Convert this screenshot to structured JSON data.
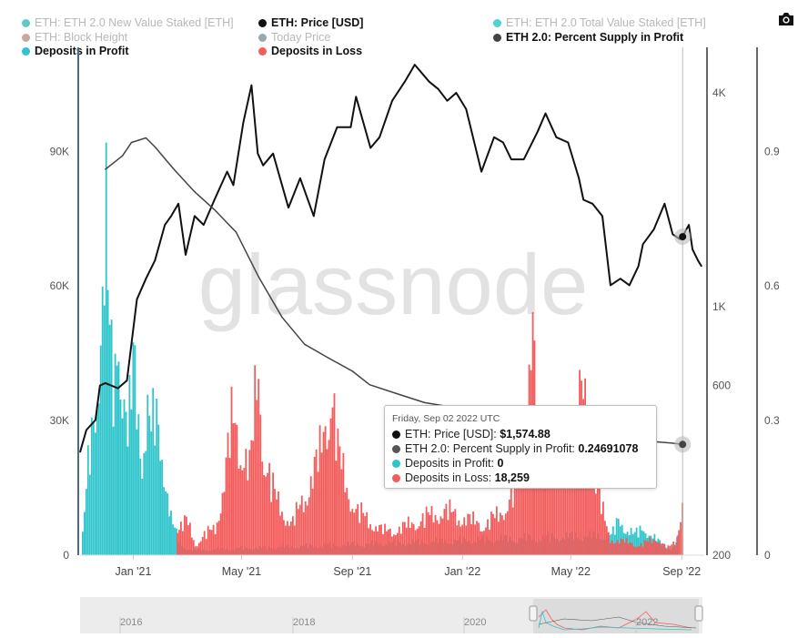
{
  "legend": {
    "items": [
      {
        "label": "ETH: ETH 2.0 New Value Staked [ETH]",
        "color": "#5fc9c9",
        "muted": true
      },
      {
        "label": "ETH: Price [USD]",
        "color": "#111111",
        "muted": false
      },
      {
        "label": "ETH: ETH 2.0 Total Value Staked [ETH]",
        "color": "#4fd2d2",
        "muted": true
      },
      {
        "label": "ETH: Block Height",
        "color": "#c9a8a0",
        "muted": true
      },
      {
        "label": "Today Price",
        "color": "#9aa8b0",
        "muted": true
      },
      {
        "label": "ETH 2.0: Percent Supply in Profit",
        "color": "#444444",
        "muted": false
      },
      {
        "label": "Deposits in Profit",
        "color": "#2dc5cb",
        "muted": false
      },
      {
        "label": "Deposits in Loss",
        "color": "#f45b5b",
        "muted": false
      }
    ]
  },
  "colors": {
    "profit": "#2dc5cb",
    "loss": "#f45b5b",
    "price": "#111111",
    "supply": "#444444",
    "axis_blue": "#4a6a8a",
    "axis_dark": "#333333"
  },
  "icons": {
    "camera": "camera-icon"
  },
  "watermark": "glassnode",
  "tooltip": {
    "date": "Friday, Sep 02 2022 UTC",
    "rows": [
      {
        "label": "ETH: Price [USD]:",
        "value": "$1,574.88",
        "color": "#111111"
      },
      {
        "label": "ETH 2.0: Percent Supply in Profit:",
        "value": "0.24691078",
        "color": "#555555"
      },
      {
        "label": "Deposits in Profit:",
        "value": "0",
        "color": "#2dc5cb"
      },
      {
        "label": "Deposits in Loss:",
        "value": "18,259",
        "color": "#f45b5b"
      }
    ]
  },
  "navigator": {
    "labels": [
      "2016",
      "2018",
      "2020",
      "2022"
    ]
  },
  "chart_data": {
    "type": "bar",
    "x_ticks": [
      "Jan '21",
      "May '21",
      "Sep '21",
      "Jan '22",
      "May '22",
      "Sep '22"
    ],
    "y_left": {
      "ticks": [
        "0",
        "30K",
        "60K",
        "90K"
      ],
      "range": [
        0,
        114000
      ]
    },
    "y_price": {
      "scale": "log",
      "ticks": [
        "200",
        "600",
        "1K",
        "4K"
      ],
      "range": [
        200,
        5500
      ]
    },
    "y_right": {
      "ticks": [
        "0",
        "0.3",
        "0.6",
        "0.9"
      ],
      "range": [
        0,
        1.14
      ]
    },
    "x_range": [
      "2020-11-03",
      "2022-09-26"
    ],
    "series": [
      {
        "name": "Deposits in Profit",
        "type": "bar",
        "color": "#2dc5cb",
        "points": [
          [
            "2020-11-05",
            6000
          ],
          [
            "2020-11-12",
            28000
          ],
          [
            "2020-11-20",
            45000
          ],
          [
            "2020-11-25",
            72000
          ],
          [
            "2020-12-01",
            98000
          ],
          [
            "2020-12-05",
            60000
          ],
          [
            "2020-12-10",
            48000
          ],
          [
            "2020-12-15",
            70000
          ],
          [
            "2020-12-20",
            50000
          ],
          [
            "2020-12-25",
            35000
          ],
          [
            "2021-01-01",
            56000
          ],
          [
            "2021-01-05",
            42000
          ],
          [
            "2021-01-10",
            30000
          ],
          [
            "2021-01-15",
            45000
          ],
          [
            "2021-01-20",
            36000
          ],
          [
            "2021-01-25",
            40000
          ],
          [
            "2021-02-01",
            30000
          ],
          [
            "2021-02-06",
            22000
          ],
          [
            "2021-02-10",
            12000
          ],
          [
            "2021-02-14",
            8000
          ],
          [
            "2021-02-22",
            3000
          ],
          [
            "2021-03-06",
            1500
          ],
          [
            "2022-06-15",
            6000
          ],
          [
            "2022-06-22",
            10000
          ],
          [
            "2022-07-01",
            8000
          ],
          [
            "2022-07-10",
            6000
          ],
          [
            "2022-07-20",
            8000
          ],
          [
            "2022-08-01",
            5000
          ],
          [
            "2022-08-10",
            3000
          ],
          [
            "2022-08-20",
            2000
          ],
          [
            "2022-08-28",
            5000
          ]
        ]
      },
      {
        "name": "Deposits in Loss",
        "type": "bar",
        "color": "#f45b5b",
        "points": [
          [
            "2021-02-18",
            8000
          ],
          [
            "2021-03-01",
            10000
          ],
          [
            "2021-03-10",
            3000
          ],
          [
            "2021-03-20",
            6000
          ],
          [
            "2021-04-01",
            8000
          ],
          [
            "2021-04-10",
            20000
          ],
          [
            "2021-04-20",
            40000
          ],
          [
            "2021-05-01",
            32000
          ],
          [
            "2021-05-10",
            25000
          ],
          [
            "2021-05-18",
            55000
          ],
          [
            "2021-05-25",
            30000
          ],
          [
            "2021-06-05",
            18000
          ],
          [
            "2021-06-15",
            13000
          ],
          [
            "2021-06-25",
            9000
          ],
          [
            "2021-07-05",
            15000
          ],
          [
            "2021-07-15",
            22000
          ],
          [
            "2021-07-25",
            28000
          ],
          [
            "2021-08-01",
            38000
          ],
          [
            "2021-08-08",
            52000
          ],
          [
            "2021-08-15",
            30000
          ],
          [
            "2021-08-25",
            20000
          ],
          [
            "2021-09-05",
            13000
          ],
          [
            "2021-09-20",
            10000
          ],
          [
            "2021-10-05",
            7000
          ],
          [
            "2021-10-25",
            8000
          ],
          [
            "2021-11-10",
            10000
          ],
          [
            "2021-11-28",
            12000
          ],
          [
            "2021-12-10",
            13000
          ],
          [
            "2021-12-25",
            12000
          ],
          [
            "2022-01-10",
            10000
          ],
          [
            "2022-01-25",
            9000
          ],
          [
            "2022-02-10",
            12000
          ],
          [
            "2022-02-25",
            18000
          ],
          [
            "2022-03-05",
            26000
          ],
          [
            "2022-03-12",
            48000
          ],
          [
            "2022-03-18",
            70000
          ],
          [
            "2022-03-25",
            32000
          ],
          [
            "2022-04-05",
            36000
          ],
          [
            "2022-04-15",
            24000
          ],
          [
            "2022-04-25",
            30000
          ],
          [
            "2022-05-05",
            32000
          ],
          [
            "2022-05-12",
            47000
          ],
          [
            "2022-05-20",
            38000
          ],
          [
            "2022-05-28",
            22000
          ],
          [
            "2022-06-05",
            12000
          ],
          [
            "2022-06-12",
            5000
          ],
          [
            "2022-07-15",
            3000
          ],
          [
            "2022-08-05",
            5000
          ],
          [
            "2022-08-15",
            2000
          ],
          [
            "2022-08-25",
            4000
          ],
          [
            "2022-09-02",
            18259
          ]
        ]
      },
      {
        "name": "ETH: Price [USD]",
        "type": "line",
        "axis": "price",
        "color": "#111111",
        "points": [
          [
            "2020-11-03",
            390
          ],
          [
            "2020-11-10",
            450
          ],
          [
            "2020-11-20",
            480
          ],
          [
            "2020-11-25",
            600
          ],
          [
            "2020-12-01",
            610
          ],
          [
            "2020-12-15",
            590
          ],
          [
            "2020-12-25",
            620
          ],
          [
            "2021-01-05",
            1050
          ],
          [
            "2021-01-15",
            1200
          ],
          [
            "2021-01-25",
            1350
          ],
          [
            "2021-02-05",
            1700
          ],
          [
            "2021-02-12",
            1800
          ],
          [
            "2021-02-20",
            1950
          ],
          [
            "2021-02-28",
            1400
          ],
          [
            "2021-03-10",
            1800
          ],
          [
            "2021-03-20",
            1700
          ],
          [
            "2021-04-01",
            2000
          ],
          [
            "2021-04-15",
            2400
          ],
          [
            "2021-04-22",
            2200
          ],
          [
            "2021-05-03",
            3300
          ],
          [
            "2021-05-12",
            4200
          ],
          [
            "2021-05-19",
            2700
          ],
          [
            "2021-05-25",
            2500
          ],
          [
            "2021-06-05",
            2700
          ],
          [
            "2021-06-22",
            1900
          ],
          [
            "2021-07-05",
            2300
          ],
          [
            "2021-07-20",
            1800
          ],
          [
            "2021-08-01",
            2600
          ],
          [
            "2021-08-15",
            3200
          ],
          [
            "2021-08-30",
            3200
          ],
          [
            "2021-09-05",
            3900
          ],
          [
            "2021-09-21",
            2800
          ],
          [
            "2021-10-01",
            3000
          ],
          [
            "2021-10-15",
            3800
          ],
          [
            "2021-10-29",
            4300
          ],
          [
            "2021-11-09",
            4800
          ],
          [
            "2021-11-25",
            4300
          ],
          [
            "2021-12-05",
            4100
          ],
          [
            "2021-12-15",
            3800
          ],
          [
            "2021-12-25",
            4000
          ],
          [
            "2022-01-05",
            3600
          ],
          [
            "2022-01-22",
            2400
          ],
          [
            "2022-02-05",
            3000
          ],
          [
            "2022-02-15",
            2900
          ],
          [
            "2022-02-24",
            2600
          ],
          [
            "2022-03-10",
            2600
          ],
          [
            "2022-03-25",
            3100
          ],
          [
            "2022-04-03",
            3500
          ],
          [
            "2022-04-15",
            3000
          ],
          [
            "2022-04-28",
            2900
          ],
          [
            "2022-05-10",
            2300
          ],
          [
            "2022-05-15",
            2000
          ],
          [
            "2022-05-25",
            1950
          ],
          [
            "2022-06-05",
            1800
          ],
          [
            "2022-06-14",
            1150
          ],
          [
            "2022-06-25",
            1200
          ],
          [
            "2022-07-05",
            1150
          ],
          [
            "2022-07-15",
            1300
          ],
          [
            "2022-07-20",
            1500
          ],
          [
            "2022-08-01",
            1650
          ],
          [
            "2022-08-13",
            1950
          ],
          [
            "2022-08-22",
            1600
          ],
          [
            "2022-08-30",
            1550
          ],
          [
            "2022-09-02",
            1575
          ],
          [
            "2022-09-06",
            1650
          ],
          [
            "2022-09-09",
            1700
          ],
          [
            "2022-09-13",
            1450
          ],
          [
            "2022-09-19",
            1350
          ],
          [
            "2022-09-23",
            1300
          ]
        ]
      },
      {
        "name": "ETH 2.0: Percent Supply in Profit",
        "type": "line",
        "axis": "right",
        "color": "#444444",
        "points": [
          [
            "2020-12-01",
            0.86
          ],
          [
            "2020-12-20",
            0.89
          ],
          [
            "2020-12-30",
            0.92
          ],
          [
            "2021-01-15",
            0.93
          ],
          [
            "2021-01-25",
            0.91
          ],
          [
            "2021-02-15",
            0.86
          ],
          [
            "2021-03-10",
            0.81
          ],
          [
            "2021-04-01",
            0.77
          ],
          [
            "2021-04-25",
            0.72
          ],
          [
            "2021-05-20",
            0.62
          ],
          [
            "2021-06-15",
            0.53
          ],
          [
            "2021-07-10",
            0.47
          ],
          [
            "2021-08-05",
            0.44
          ],
          [
            "2021-09-01",
            0.41
          ],
          [
            "2021-09-20",
            0.38
          ],
          [
            "2021-10-20",
            0.36
          ],
          [
            "2021-11-20",
            0.34
          ],
          [
            "2021-12-20",
            0.33
          ],
          [
            "2022-01-20",
            0.32
          ],
          [
            "2022-02-20",
            0.31
          ],
          [
            "2022-03-20",
            0.3
          ],
          [
            "2022-04-20",
            0.29
          ],
          [
            "2022-05-20",
            0.28
          ],
          [
            "2022-06-20",
            0.26
          ],
          [
            "2022-07-20",
            0.255
          ],
          [
            "2022-08-20",
            0.25
          ],
          [
            "2022-09-02",
            0.2469
          ]
        ]
      }
    ]
  }
}
